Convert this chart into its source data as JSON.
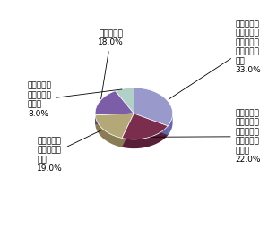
{
  "slices": [
    {
      "label": "務める勤務\n先の学校自\n身が負担。\n期間は単年\n度。\n33.0%",
      "value": 33.0,
      "color": "#9999cc",
      "dark_color": "#6666aa"
    },
    {
      "label": "務める勤務\n先の学校自\n身が負担。\n期間は複数\n年度。\n22.0%",
      "value": 22.0,
      "color": "#7b2d4e",
      "dark_color": "#5a1f38"
    },
    {
      "label": "国が負担。\n期間は単年\n度。\n19.0%",
      "value": 19.0,
      "color": "#b5a878",
      "dark_color": "#8a7d55"
    },
    {
      "label": "わからない\n18.0%",
      "value": 18.0,
      "color": "#7b5ea7",
      "dark_color": "#5a4080"
    },
    {
      "label": "国が負担。\n期間は複数\n年度。\n8.0%",
      "value": 8.0,
      "color": "#b0d0c8",
      "dark_color": "#80a8a0"
    }
  ],
  "background_color": "#ffffff",
  "label_fontsize": 6.5
}
